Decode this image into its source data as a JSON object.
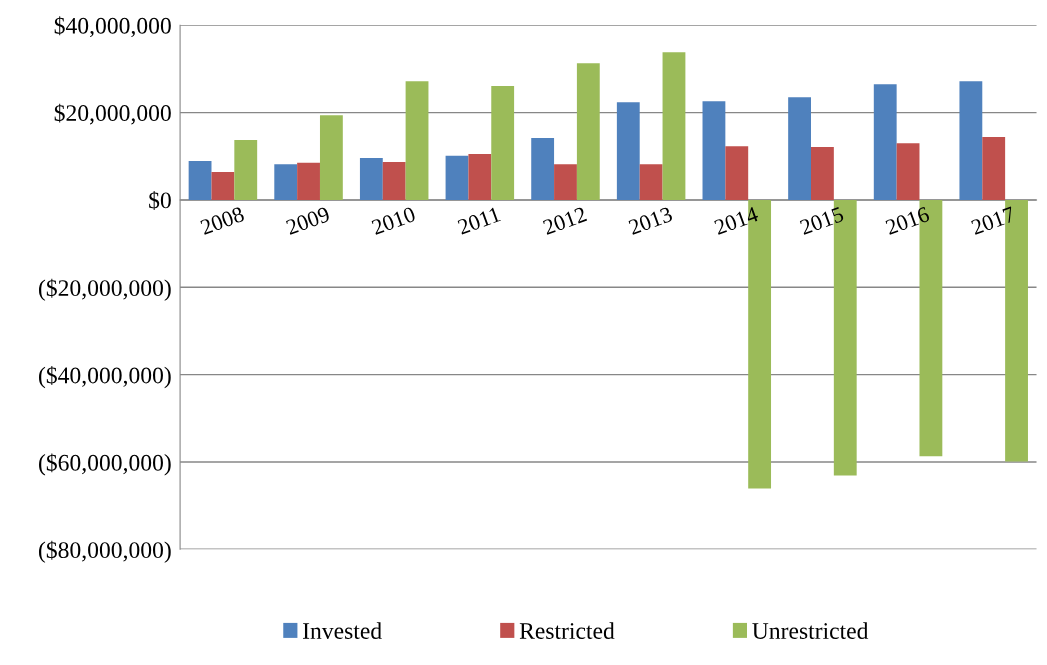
{
  "chart_data": {
    "type": "bar",
    "categories": [
      "2008",
      "2009",
      "2010",
      "2011",
      "2012",
      "2013",
      "2014",
      "2015",
      "2016",
      "2017"
    ],
    "series": [
      {
        "name": "Invested",
        "color": "#4f81bd",
        "values": [
          8900000.0,
          8200000.0,
          9600000.0,
          10100000.0,
          14200000.0,
          22400000.0,
          22600000.0,
          23500000.0,
          26500000.0,
          27200000.0
        ]
      },
      {
        "name": "Restricted",
        "color": "#c0504d",
        "values": [
          6400000.0,
          8500000.0,
          8700000.0,
          10500000.0,
          8200000.0,
          8200000.0,
          12300000.0,
          12100000.0,
          13000000.0,
          14400000.0
        ]
      },
      {
        "name": "Unrestricted",
        "color": "#9bbb59",
        "values": [
          13700000.0,
          19400000.0,
          27200000.0,
          26100000.0,
          31300000.0,
          33800000.0,
          -66100000.0,
          -63100000.0,
          -58700000.0,
          -59900000.0
        ]
      }
    ],
    "ylim": [
      -80000000,
      40000000
    ],
    "yticks": [
      {
        "value": -80000000,
        "label": "($80,000,000)"
      },
      {
        "value": -60000000,
        "label": "($60,000,000)"
      },
      {
        "value": -40000000,
        "label": "($40,000,000)"
      },
      {
        "value": -20000000,
        "label": "($20,000,000)"
      },
      {
        "value": 0,
        "label": "$0"
      },
      {
        "value": 20000000,
        "label": "$20,000,000"
      },
      {
        "value": 40000000,
        "label": "$40,000,000"
      }
    ],
    "grid": "y",
    "legend": "bottom"
  }
}
